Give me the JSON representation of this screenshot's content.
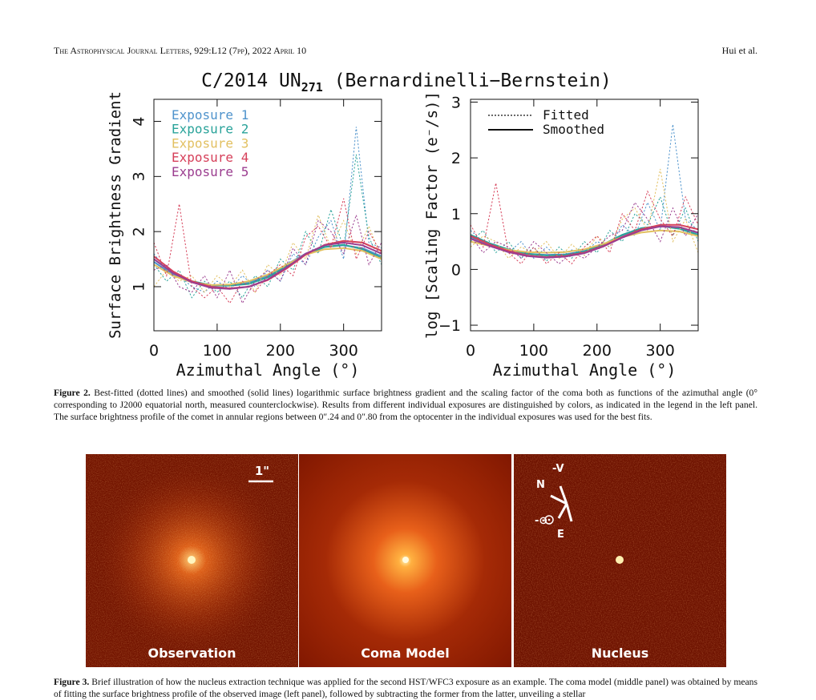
{
  "header": {
    "journal": "The Astrophysical Journal Letters, 929:L12 (7pp), 2022 April 10",
    "author": "Hui et al."
  },
  "figure2": {
    "title": {
      "text": "C/2014 UN",
      "subscript": "271",
      "suffix": " (Bernardinelli−Bernstein)"
    },
    "caption_label": "Figure 2.",
    "caption": "Best-fitted (dotted lines) and smoothed (solid lines) logarithmic surface brightness gradient and the scaling factor of the coma both as functions of the azimuthal angle (0° corresponding to J2000 equatorial north, measured counterclockwise). Results from different individual exposures are distinguished by colors, as indicated in the legend in the left panel. The surface brightness profile of the comet in annular regions between 0″.24 and 0″.80 from the optocenter in the individual exposures was used for the best fits."
  },
  "chart_data": [
    {
      "type": "line",
      "x_label": "Azimuthal Angle (°)",
      "y_label": "Surface Brightness Gradient",
      "xlim": [
        0,
        360
      ],
      "xticks": [
        0,
        100,
        200,
        300
      ],
      "ylim": [
        0.2,
        4.4
      ],
      "yticks": [
        1,
        2,
        3,
        4
      ],
      "x_fitted": [
        0,
        20,
        40,
        60,
        80,
        100,
        120,
        140,
        160,
        180,
        200,
        220,
        240,
        260,
        280,
        300,
        320,
        340,
        360
      ],
      "x_smoothed": [
        0,
        30,
        60,
        90,
        120,
        150,
        180,
        210,
        240,
        270,
        300,
        330,
        360
      ],
      "series": [
        {
          "name": "Exposure 1",
          "color": "#4f93cc",
          "fitted": [
            1.6,
            1.3,
            1.2,
            1.0,
            0.9,
            1.1,
            0.95,
            1.2,
            1.0,
            1.3,
            1.1,
            1.6,
            1.4,
            1.9,
            2.2,
            1.5,
            3.9,
            1.8,
            1.7
          ],
          "smoothed": [
            1.45,
            1.22,
            1.08,
            1.02,
            1.02,
            1.07,
            1.2,
            1.4,
            1.6,
            1.72,
            1.75,
            1.7,
            1.55
          ]
        },
        {
          "name": "Exposure 2",
          "color": "#2aa39a",
          "fitted": [
            1.4,
            1.1,
            1.3,
            0.8,
            1.1,
            0.9,
            1.1,
            0.8,
            1.2,
            1.0,
            1.5,
            1.3,
            2.0,
            1.6,
            2.4,
            1.7,
            3.4,
            1.9,
            1.4
          ],
          "smoothed": [
            1.5,
            1.25,
            1.1,
            1.03,
            1.02,
            1.05,
            1.17,
            1.37,
            1.58,
            1.72,
            1.76,
            1.68,
            1.52
          ]
        },
        {
          "name": "Exposure 3",
          "color": "#e2c061",
          "fitted": [
            1.0,
            1.3,
            1.1,
            1.2,
            0.9,
            1.2,
            1.0,
            1.3,
            0.9,
            1.4,
            1.2,
            1.8,
            1.5,
            2.3,
            1.7,
            2.2,
            1.6,
            2.1,
            1.5
          ],
          "smoothed": [
            1.4,
            1.2,
            1.08,
            1.03,
            1.04,
            1.1,
            1.22,
            1.4,
            1.58,
            1.68,
            1.7,
            1.65,
            1.5
          ]
        },
        {
          "name": "Exposure 4",
          "color": "#d6405a",
          "fitted": [
            1.8,
            1.2,
            2.5,
            1.0,
            0.8,
            1.0,
            0.7,
            1.1,
            0.9,
            1.2,
            1.4,
            1.2,
            1.9,
            2.1,
            1.7,
            2.6,
            1.5,
            2.0,
            1.6
          ],
          "smoothed": [
            1.55,
            1.28,
            1.1,
            1.0,
            0.97,
            1.0,
            1.12,
            1.33,
            1.58,
            1.76,
            1.83,
            1.8,
            1.65
          ]
        },
        {
          "name": "Exposure 5",
          "color": "#9b3d8f",
          "fitted": [
            1.3,
            1.4,
            1.0,
            0.9,
            1.2,
            0.8,
            1.3,
            0.7,
            1.1,
            1.3,
            1.1,
            1.7,
            1.4,
            2.2,
            2.0,
            1.6,
            2.3,
            1.4,
            1.8
          ],
          "smoothed": [
            1.5,
            1.25,
            1.08,
            0.98,
            0.96,
            1.0,
            1.13,
            1.35,
            1.6,
            1.75,
            1.8,
            1.75,
            1.6
          ]
        }
      ]
    },
    {
      "type": "line",
      "x_label": "Azimuthal Angle (°)",
      "y_label": "log [Scaling Factor (e⁻/s)]",
      "xlim": [
        0,
        360
      ],
      "xticks": [
        0,
        100,
        200,
        300
      ],
      "ylim": [
        -1.1,
        3.05
      ],
      "yticks": [
        {
          "value": -1,
          "label": "−1"
        },
        0,
        1,
        2,
        3
      ],
      "legend": [
        {
          "label": "Fitted",
          "dashed": true
        },
        {
          "label": "Smoothed",
          "dashed": false
        }
      ],
      "x_fitted": [
        0,
        20,
        40,
        60,
        80,
        100,
        120,
        140,
        160,
        180,
        200,
        220,
        240,
        260,
        280,
        300,
        320,
        340,
        360
      ],
      "x_smoothed": [
        0,
        30,
        60,
        90,
        120,
        150,
        180,
        210,
        240,
        270,
        300,
        330,
        360
      ],
      "series": [
        {
          "color": "#4f93cc",
          "fitted": [
            0.7,
            0.5,
            0.4,
            0.3,
            0.5,
            0.2,
            0.4,
            0.2,
            0.35,
            0.3,
            0.5,
            0.4,
            0.8,
            0.6,
            1.2,
            0.7,
            2.6,
            0.9,
            0.7
          ],
          "smoothed": [
            0.58,
            0.45,
            0.35,
            0.28,
            0.26,
            0.27,
            0.33,
            0.45,
            0.6,
            0.72,
            0.78,
            0.75,
            0.65
          ]
        },
        {
          "color": "#2aa39a",
          "fitted": [
            0.5,
            0.7,
            0.3,
            0.5,
            0.2,
            0.4,
            0.15,
            0.4,
            0.2,
            0.5,
            0.3,
            0.7,
            0.5,
            1.0,
            0.8,
            1.3,
            0.6,
            1.1,
            0.5
          ],
          "smoothed": [
            0.62,
            0.47,
            0.36,
            0.28,
            0.25,
            0.26,
            0.32,
            0.45,
            0.62,
            0.74,
            0.78,
            0.73,
            0.62
          ]
        },
        {
          "color": "#e2c061",
          "fitted": [
            0.4,
            0.6,
            0.5,
            0.2,
            0.4,
            0.3,
            0.5,
            0.2,
            0.45,
            0.25,
            0.6,
            0.4,
            0.9,
            1.1,
            0.7,
            1.8,
            0.5,
            0.9,
            0.3
          ],
          "smoothed": [
            0.5,
            0.42,
            0.35,
            0.31,
            0.3,
            0.31,
            0.36,
            0.46,
            0.58,
            0.66,
            0.7,
            0.68,
            0.6
          ]
        },
        {
          "color": "#d6405a",
          "fitted": [
            0.8,
            0.4,
            1.55,
            0.3,
            0.1,
            0.4,
            0.1,
            0.3,
            0.1,
            0.4,
            0.6,
            0.3,
            1.0,
            0.7,
            1.4,
            0.9,
            0.6,
            1.3,
            0.8
          ],
          "smoothed": [
            0.6,
            0.45,
            0.33,
            0.25,
            0.22,
            0.24,
            0.3,
            0.42,
            0.58,
            0.72,
            0.8,
            0.8,
            0.72
          ]
        },
        {
          "color": "#9b3d8f",
          "fitted": [
            0.6,
            0.3,
            0.5,
            0.4,
            0.2,
            0.5,
            0.3,
            0.1,
            0.3,
            0.2,
            0.4,
            0.6,
            0.7,
            1.2,
            0.9,
            0.5,
            1.1,
            0.6,
            1.0
          ],
          "smoothed": [
            0.55,
            0.42,
            0.31,
            0.24,
            0.21,
            0.23,
            0.29,
            0.41,
            0.57,
            0.7,
            0.77,
            0.76,
            0.66
          ]
        }
      ]
    }
  ],
  "figure3": {
    "panels": [
      "Observation",
      "Coma Model",
      "Nucleus"
    ],
    "scale_label": "1\"",
    "compass": {
      "velocity": "-V",
      "north": "N",
      "sun": "-⊙",
      "east": "E"
    },
    "caption_label": "Figure 3.",
    "caption": "Brief illustration of how the nucleus extraction technique was applied for the second HST/WFC3 exposure as an example. The coma model (middle panel) was obtained by means of fitting the surface brightness profile of the observed image (left panel), followed by subtracting the former from the latter, unveiling a stellar"
  }
}
